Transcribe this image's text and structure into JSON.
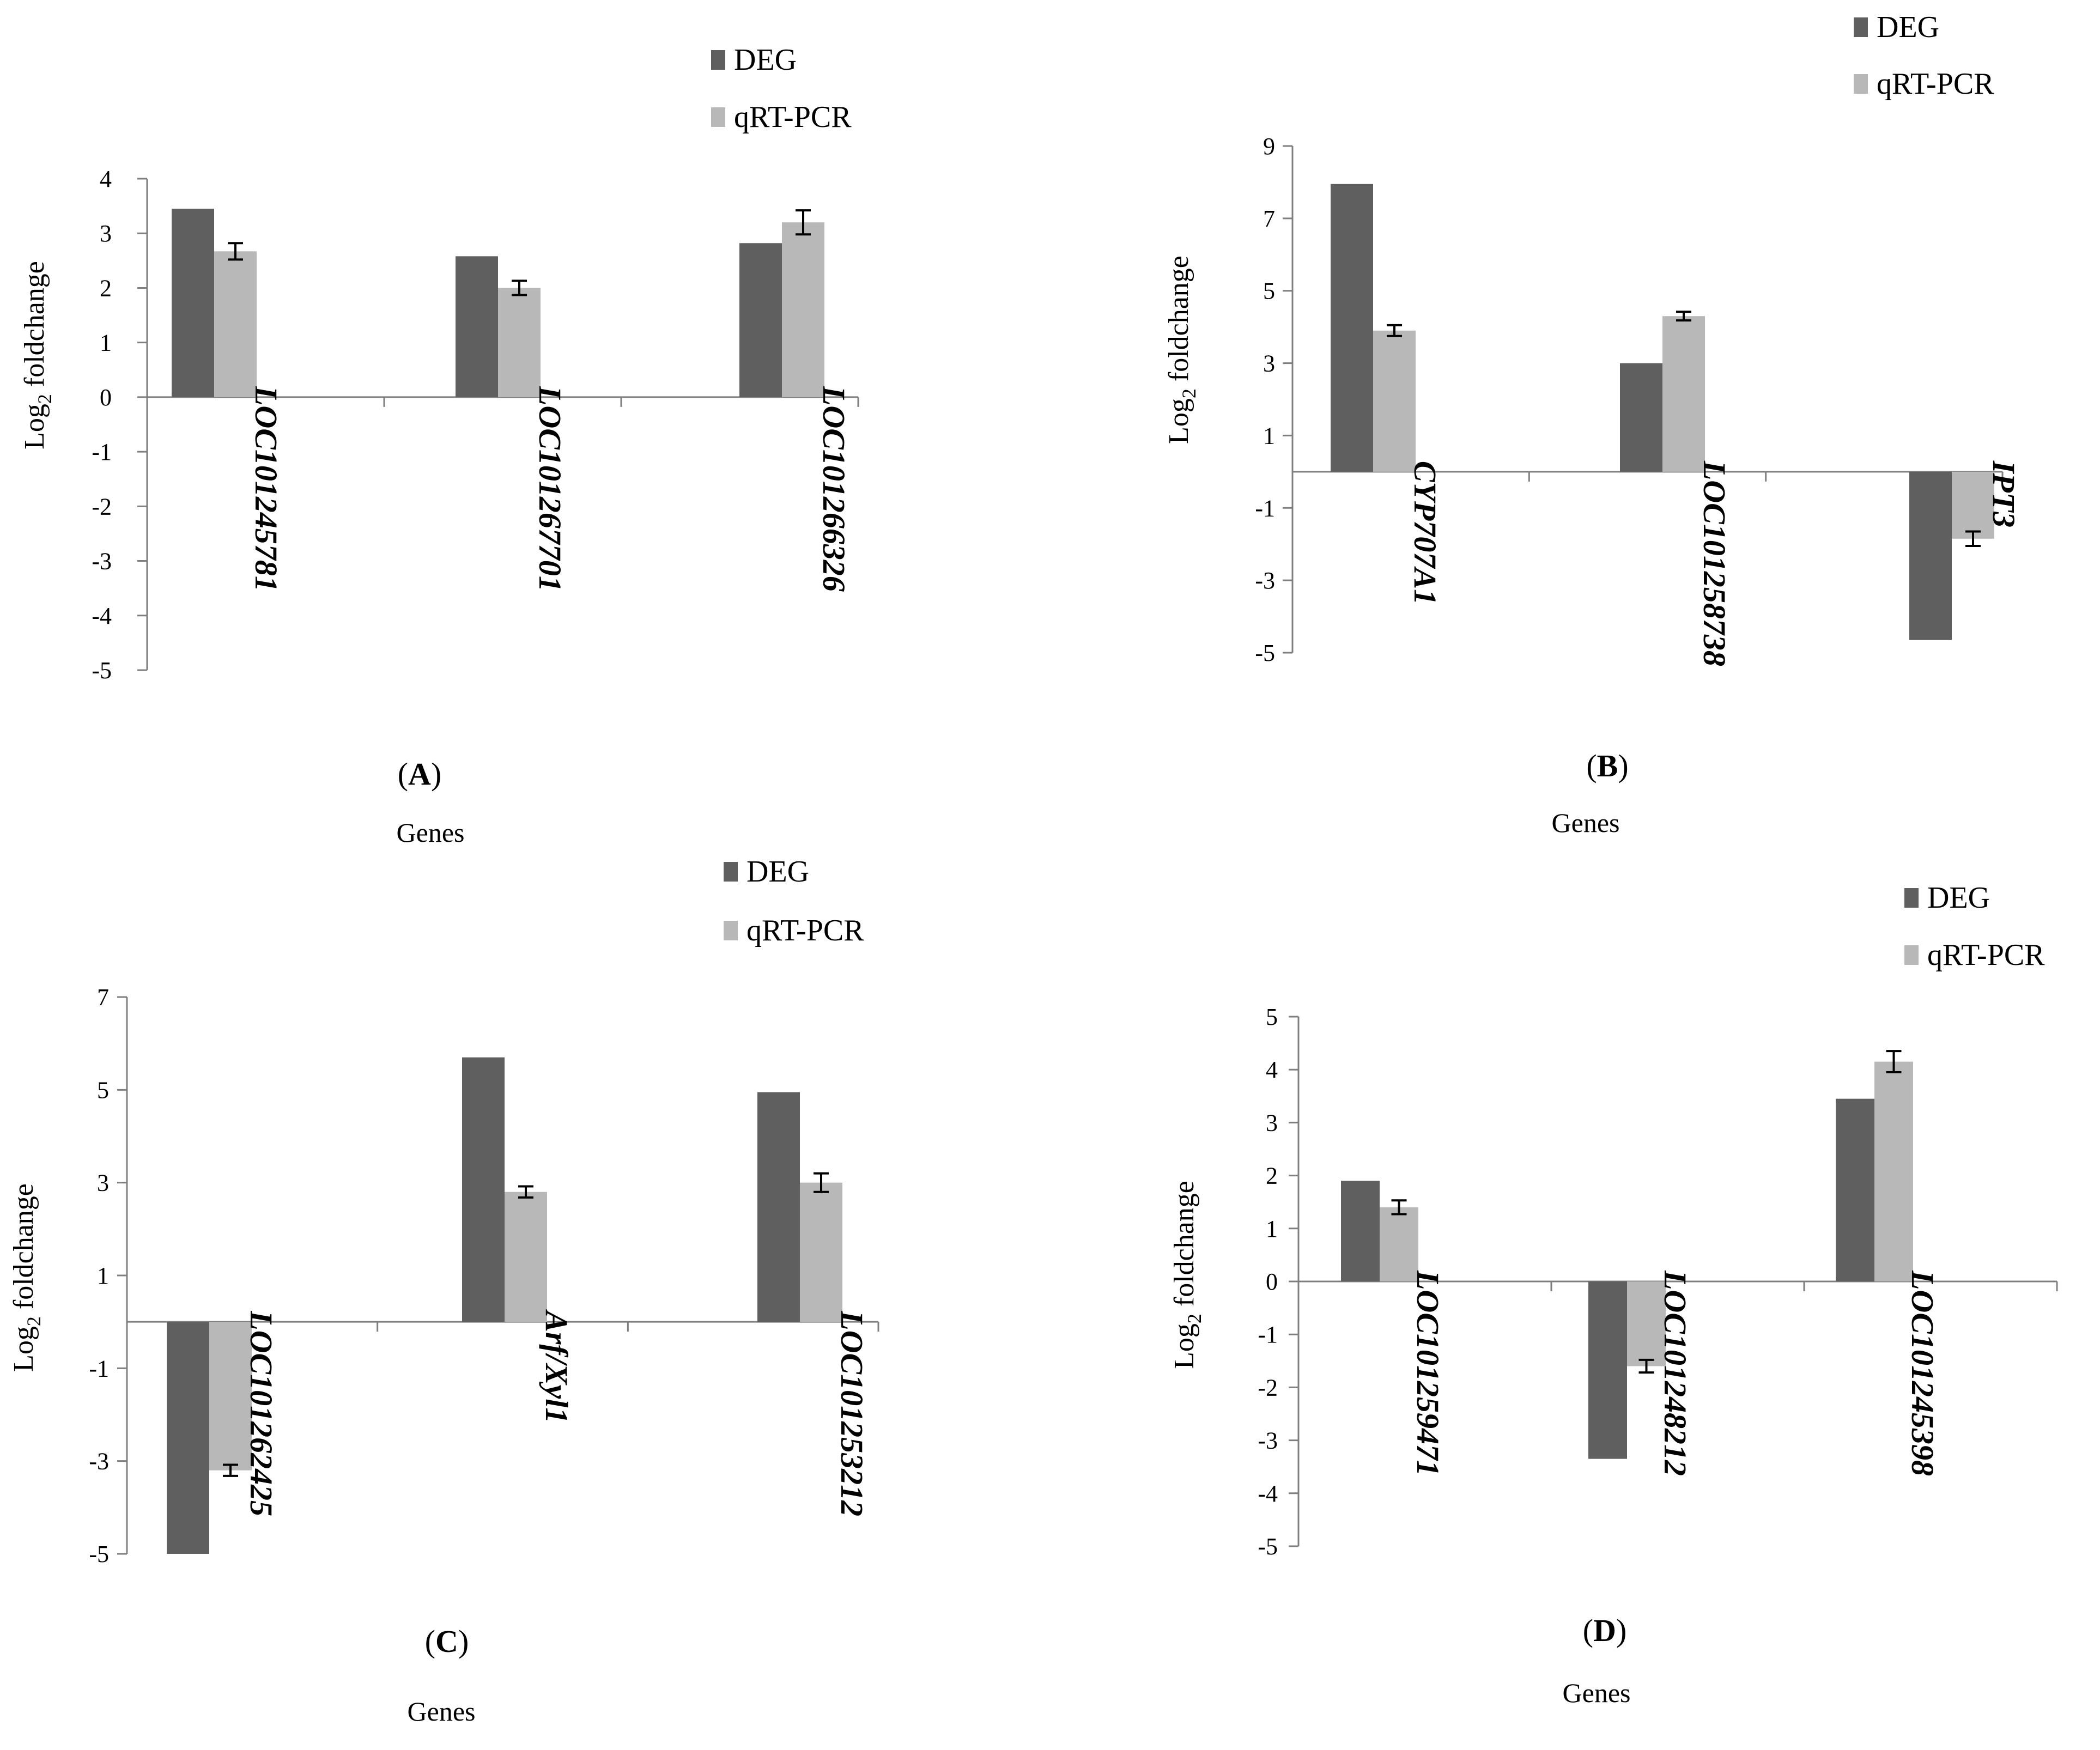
{
  "legend": {
    "deg": "DEG",
    "qrt": "qRT-PCR"
  },
  "colors": {
    "deg": "#5f5f5f",
    "qrt": "#b8b8b8",
    "axis": "#7f7f7f",
    "error": "#000000"
  },
  "chart_data": [
    {
      "type": "bar",
      "panel_label": "A",
      "xlabel": "Genes",
      "ylabel_main": "Log",
      "ylabel_sub": "2",
      "ylabel_rest": " foldchange",
      "ylim": [
        -5,
        4
      ],
      "yticks": [
        4,
        3,
        2,
        1,
        0,
        -1,
        -2,
        -3,
        -4,
        -5
      ],
      "categories": [
        "LOC101245781",
        "LOC101267701",
        "LOC101266326"
      ],
      "series": [
        {
          "name": "DEG",
          "values": [
            3.45,
            2.58,
            2.82
          ]
        },
        {
          "name": "qRT-PCR",
          "values": [
            2.67,
            2.0,
            3.2
          ],
          "errors": [
            0.15,
            0.13,
            0.22
          ]
        }
      ]
    },
    {
      "type": "bar",
      "panel_label": "B",
      "xlabel": "Genes",
      "ylabel_main": "Log",
      "ylabel_sub": "2",
      "ylabel_rest": " foldchange",
      "ylim": [
        -5,
        9
      ],
      "yticks": [
        9,
        7,
        5,
        3,
        1,
        -1,
        -3,
        -5
      ],
      "categories": [
        "CYP707A1",
        "LOC101258738",
        "IPT3"
      ],
      "series": [
        {
          "name": "DEG",
          "values": [
            7.95,
            3.0,
            -4.65
          ]
        },
        {
          "name": "qRT-PCR",
          "values": [
            3.9,
            4.3,
            -1.85
          ],
          "errors": [
            0.15,
            0.12,
            0.2
          ]
        }
      ]
    },
    {
      "type": "bar",
      "panel_label": "C",
      "xlabel": "Genes",
      "ylabel_main": "Log",
      "ylabel_sub": "2",
      "ylabel_rest": " foldchange",
      "ylim": [
        -5,
        7
      ],
      "yticks": [
        7,
        5,
        3,
        1,
        -1,
        -3,
        -5
      ],
      "categories": [
        "LOC101262425",
        "Arf/Xyl1",
        "LOC101253212"
      ],
      "series": [
        {
          "name": "DEG",
          "values": [
            -5.0,
            5.7,
            4.95
          ]
        },
        {
          "name": "qRT-PCR",
          "values": [
            -3.2,
            2.8,
            3.0
          ],
          "errors": [
            0.12,
            0.12,
            0.2
          ]
        }
      ]
    },
    {
      "type": "bar",
      "panel_label": "D",
      "xlabel": "Genes",
      "ylabel_main": "Log",
      "ylabel_sub": "2",
      "ylabel_rest": " foldchange",
      "ylim": [
        -5,
        5
      ],
      "yticks": [
        5,
        4,
        3,
        2,
        1,
        0,
        -1,
        -2,
        -3,
        -4,
        -5
      ],
      "categories": [
        "LOC101259471",
        "LOC101248212",
        "LOC101245398"
      ],
      "series": [
        {
          "name": "DEG",
          "values": [
            1.9,
            -3.35,
            3.45
          ]
        },
        {
          "name": "qRT-PCR",
          "values": [
            1.4,
            -1.6,
            4.15
          ],
          "errors": [
            0.13,
            0.12,
            0.2
          ]
        }
      ]
    }
  ]
}
